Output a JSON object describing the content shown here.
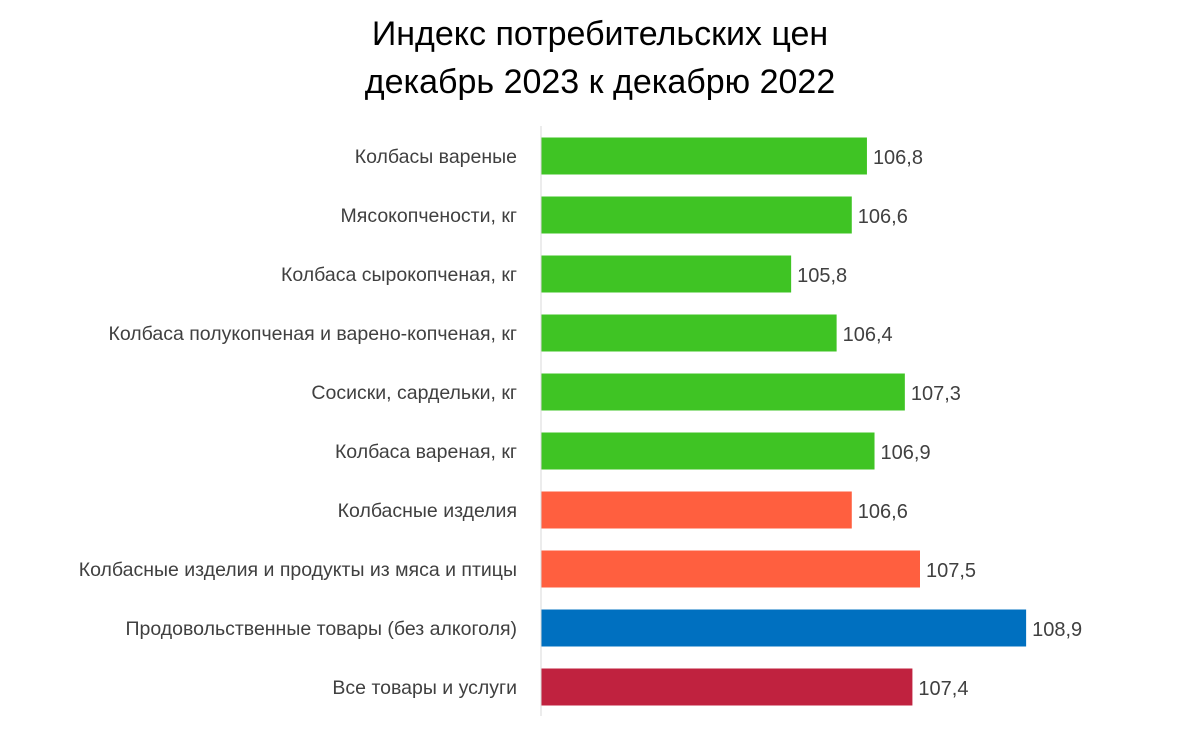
{
  "chart_data": {
    "type": "bar",
    "orientation": "horizontal",
    "title": "Индекс потребительских цен",
    "subtitle": "декабрь 2023 к декабрю 2022",
    "categories": [
      "Колбасы вареные",
      "Мясокопчености, кг",
      "Колбаса сырокопченая, кг",
      "Колбаса полукопченая и варено-копченая, кг",
      "Сосиски, сардельки, кг",
      "Колбаса вареная, кг",
      "Колбасные изделия",
      "Колбасные изделия и продукты из мяса и птицы",
      "Продовольственные товары (без алкоголя)",
      "Все товары и услуги"
    ],
    "values": [
      106.8,
      106.6,
      105.8,
      106.4,
      107.3,
      106.9,
      106.6,
      107.5,
      108.9,
      107.4
    ],
    "value_labels": [
      "106,8",
      "106,6",
      "105,8",
      "106,4",
      "107,3",
      "106,9",
      "106,6",
      "107,5",
      "108,9",
      "107,4"
    ],
    "bar_colors": [
      "#3fc424",
      "#3fc424",
      "#3fc424",
      "#3fc424",
      "#3fc424",
      "#3fc424",
      "#ff5f3f",
      "#ff5f3f",
      "#0070c0",
      "#c0223f"
    ],
    "xlim": [
      102.5,
      109.3
    ],
    "axis_color": "#d9d9d9",
    "grid": false,
    "legend": "none"
  }
}
